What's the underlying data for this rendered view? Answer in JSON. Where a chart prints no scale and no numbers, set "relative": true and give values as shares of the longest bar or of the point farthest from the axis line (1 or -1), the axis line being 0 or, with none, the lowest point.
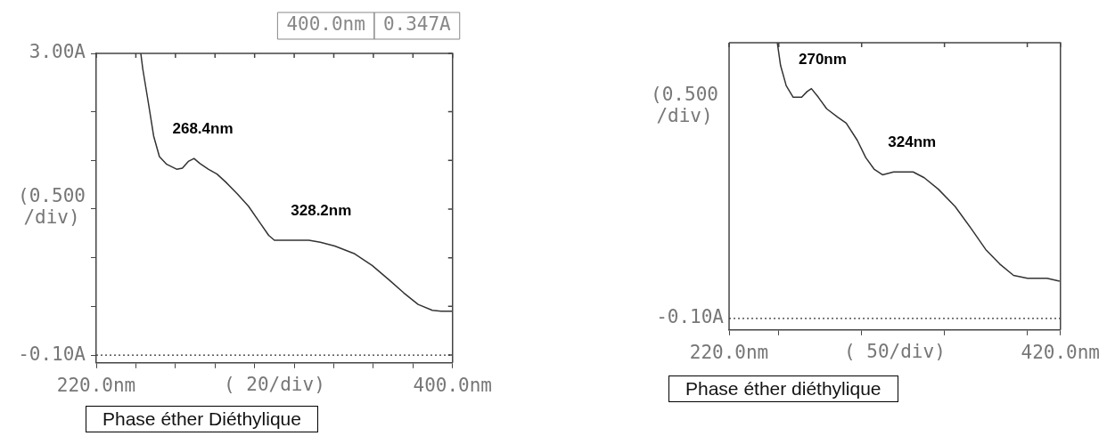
{
  "chart_data": [
    {
      "type": "line",
      "title": "Phase éther Diéthylique",
      "xlabel": "( 20/div)",
      "ylabel": "(0.500\n/div)",
      "xlim": [
        220,
        400
      ],
      "xticks": [
        {
          "value": 220,
          "label": "220.0nm"
        },
        {
          "value": 240,
          "label": null
        },
        {
          "value": 260,
          "label": null
        },
        {
          "value": 280,
          "label": null
        },
        {
          "value": 300,
          "label": null
        },
        {
          "value": 320,
          "label": null
        },
        {
          "value": 340,
          "label": null
        },
        {
          "value": 360,
          "label": null
        },
        {
          "value": 380,
          "label": null
        },
        {
          "value": 400,
          "label": "400.0nm"
        }
      ],
      "ylim": [
        -0.18,
        3.0
      ],
      "yticks": [
        {
          "value": -0.1,
          "label": "-0.10A"
        },
        {
          "value": 0.4,
          "label": null
        },
        {
          "value": 0.9,
          "label": null
        },
        {
          "value": 1.4,
          "label": null
        },
        {
          "value": 1.9,
          "label": null
        },
        {
          "value": 2.4,
          "label": null
        },
        {
          "value": 3.0,
          "label": "3.00A"
        }
      ],
      "series": [
        {
          "color": "#333333",
          "x": [
            242.5,
            243.5,
            246.1,
            249.0,
            251.9,
            255.6,
            260.6,
            263.5,
            266.5,
            269.4,
            272.3,
            276.6,
            281.0,
            285.3,
            291.1,
            296.9,
            302.7,
            307.1,
            310.0,
            315.8,
            327.4,
            333.2,
            340.5,
            350.6,
            359.4,
            368.1,
            375.3,
            382.6,
            389.8,
            394.2,
            400
          ],
          "values": [
            3.0,
            2.84,
            2.52,
            2.15,
            1.94,
            1.86,
            1.81,
            1.82,
            1.89,
            1.92,
            1.87,
            1.81,
            1.76,
            1.68,
            1.56,
            1.43,
            1.26,
            1.13,
            1.08,
            1.08,
            1.08,
            1.06,
            1.02,
            0.94,
            0.82,
            0.67,
            0.54,
            0.42,
            0.36,
            0.35,
            0.35
          ]
        }
      ],
      "ref_lines": [
        {
          "axis": "y",
          "value": -0.1,
          "line_style": "dotted"
        }
      ],
      "annotations": [
        "400.0nm",
        "0.347A",
        {
          "text": "268.4nm",
          "x": 268.4,
          "y": 1.92
        },
        {
          "text": "328.2nm",
          "x": 328.2,
          "y": 1.08
        }
      ]
    },
    {
      "type": "line",
      "title": "Phase éther diéthylique",
      "xlabel": "( 50/div)",
      "ylabel": "(0.500\n/div)",
      "xlim": [
        220,
        420
      ],
      "xticks": [
        {
          "value": 220,
          "label": "220.0nm"
        },
        {
          "value": 250,
          "label": null
        },
        {
          "value": 300,
          "label": null
        },
        {
          "value": 350,
          "label": null
        },
        {
          "value": 400,
          "label": null
        },
        {
          "value": 420,
          "label": "420.0nm"
        }
      ],
      "relative": true,
      "series": [
        {
          "color": "#333333",
          "x": [
            249.1,
            251.1,
            254.5,
            258.7,
            263.8,
            267.1,
            269.7,
            273.9,
            278.9,
            285.7,
            290.7,
            297.4,
            302.5,
            307.5,
            312.6,
            319.3,
            331.1,
            337.8,
            346.3,
            356.4,
            366.5,
            374.9,
            383.3,
            391.7,
            400.1,
            411.9,
            419.5
          ],
          "values": [
            1,
            0.92,
            0.85,
            0.81,
            0.81,
            0.83,
            0.84,
            0.81,
            0.77,
            0.74,
            0.72,
            0.66,
            0.6,
            0.56,
            0.54,
            0.55,
            0.55,
            0.53,
            0.49,
            0.43,
            0.35,
            0.28,
            0.23,
            0.19,
            0.18,
            0.18,
            0.17
          ]
        }
      ],
      "ref_lines": [
        {
          "axis": "y",
          "value": 0.04,
          "label": "-0.10A",
          "line_style": "dotted"
        }
      ],
      "annotations": [
        {
          "text": "270nm",
          "x": 270,
          "y": 0.84
        },
        {
          "text": "324nm",
          "x": 324,
          "y": 0.55
        }
      ]
    }
  ]
}
